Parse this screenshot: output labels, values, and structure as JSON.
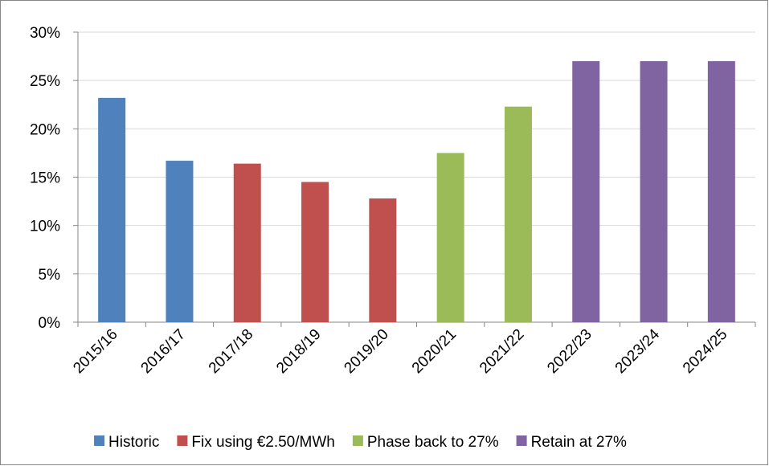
{
  "chart_data": {
    "type": "bar",
    "categories": [
      "2015/16",
      "2016/17",
      "2017/18",
      "2018/19",
      "2019/20",
      "2020/21",
      "2021/22",
      "2022/23",
      "2023/24",
      "2024/25"
    ],
    "series": [
      {
        "name": "Historic",
        "color": "#4f81bd",
        "values": [
          23.2,
          16.7,
          null,
          null,
          null,
          null,
          null,
          null,
          null,
          null
        ]
      },
      {
        "name": "Fix using €2.50/MWh",
        "color": "#c0504d",
        "values": [
          null,
          null,
          16.4,
          14.5,
          12.8,
          null,
          null,
          null,
          null,
          null
        ]
      },
      {
        "name": "Phase back to 27%",
        "color": "#9bbb59",
        "values": [
          null,
          null,
          null,
          null,
          null,
          17.5,
          22.3,
          null,
          null,
          null
        ]
      },
      {
        "name": "Retain at 27%",
        "color": "#8064a2",
        "values": [
          null,
          null,
          null,
          null,
          null,
          null,
          null,
          27,
          27,
          27
        ]
      }
    ],
    "ylim": [
      0,
      30
    ],
    "yticks": [
      {
        "value": 0,
        "label": "0%"
      },
      {
        "value": 5,
        "label": "5%"
      },
      {
        "value": 10,
        "label": "10%"
      },
      {
        "value": 15,
        "label": "15%"
      },
      {
        "value": 20,
        "label": "20%"
      },
      {
        "value": 25,
        "label": "25%"
      },
      {
        "value": 30,
        "label": "30%"
      }
    ],
    "grid": true,
    "legend": "bottom"
  }
}
